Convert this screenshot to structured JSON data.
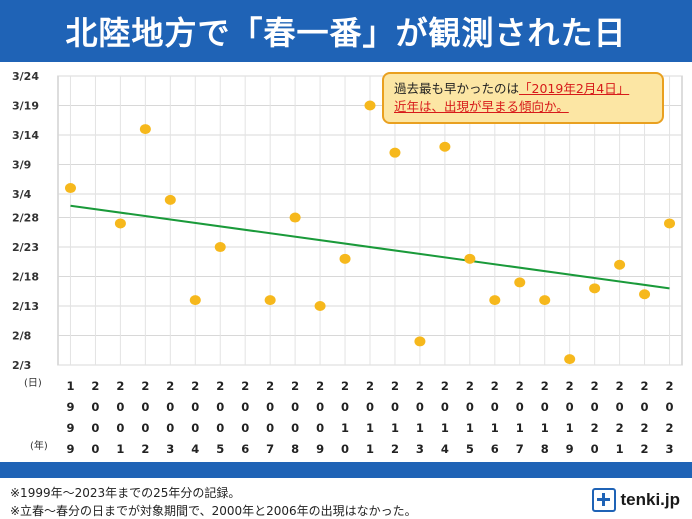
{
  "title": "北陸地方で「春一番」が観測された日",
  "callout": {
    "line1_prefix": "過去最も早かったのは",
    "line1_highlight": "「2019年2月4日」",
    "line2_highlight": "近年は、出現が早まる傾向か。"
  },
  "notes": [
    "※1999年～2023年までの25年分の記録。",
    "※立春～春分の日までが対象期間で、2000年と2006年の出現はなかった。"
  ],
  "logo": "tenki.jp",
  "colors": {
    "header": "#1f63b6",
    "point": "#f6b81c",
    "trend": "#1a9a3a",
    "callout_bg": "#fce6a4",
    "callout_border": "#e9a020",
    "highlight": "#d71a1a"
  },
  "chart_data": {
    "type": "scatter",
    "x_unit_label": "(日)",
    "year_unit_label": "(年)",
    "y_tick_labels": [
      "3/24",
      "3/19",
      "3/14",
      "3/9",
      "3/4",
      "2/28",
      "2/23",
      "2/18",
      "2/13",
      "2/8",
      "2/3"
    ],
    "ylim": [
      "2/3",
      "3/24"
    ],
    "grid": true,
    "categories": [
      "1999",
      "2000",
      "2001",
      "2002",
      "2003",
      "2004",
      "2005",
      "2006",
      "2007",
      "2008",
      "2009",
      "2010",
      "2011",
      "2012",
      "2013",
      "2014",
      "2015",
      "2016",
      "2017",
      "2018",
      "2019",
      "2020",
      "2021",
      "2022",
      "2023"
    ],
    "year_digits": [
      [
        "1",
        "9",
        "9",
        "9"
      ],
      [
        "2",
        "0",
        "0",
        "0"
      ],
      [
        "2",
        "0",
        "0",
        "1"
      ],
      [
        "2",
        "0",
        "0",
        "2"
      ],
      [
        "2",
        "0",
        "0",
        "3"
      ],
      [
        "2",
        "0",
        "0",
        "4"
      ],
      [
        "2",
        "0",
        "0",
        "5"
      ],
      [
        "2",
        "0",
        "0",
        "6"
      ],
      [
        "2",
        "0",
        "0",
        "7"
      ],
      [
        "2",
        "0",
        "0",
        "8"
      ],
      [
        "2",
        "0",
        "0",
        "9"
      ],
      [
        "2",
        "0",
        "1",
        "0"
      ],
      [
        "2",
        "0",
        "1",
        "1"
      ],
      [
        "2",
        "0",
        "1",
        "2"
      ],
      [
        "2",
        "0",
        "1",
        "3"
      ],
      [
        "2",
        "0",
        "1",
        "4"
      ],
      [
        "2",
        "0",
        "1",
        "5"
      ],
      [
        "2",
        "0",
        "1",
        "6"
      ],
      [
        "2",
        "0",
        "1",
        "7"
      ],
      [
        "2",
        "0",
        "1",
        "8"
      ],
      [
        "2",
        "0",
        "1",
        "9"
      ],
      [
        "2",
        "0",
        "2",
        "0"
      ],
      [
        "2",
        "0",
        "2",
        "1"
      ],
      [
        "2",
        "0",
        "2",
        "2"
      ],
      [
        "2",
        "0",
        "2",
        "3"
      ]
    ],
    "values": [
      "3/5",
      null,
      "2/27",
      "3/15",
      "3/3",
      "2/14",
      "2/23",
      null,
      "2/14",
      "2/28",
      "2/13",
      "2/21",
      "3/19",
      "3/11",
      "2/7",
      "3/12",
      "2/21",
      "2/14",
      "2/17",
      "2/14",
      "2/4",
      "2/16",
      "2/20",
      "2/15",
      "2/27"
    ],
    "trend": {
      "start": "3/2",
      "end": "2/16"
    }
  }
}
